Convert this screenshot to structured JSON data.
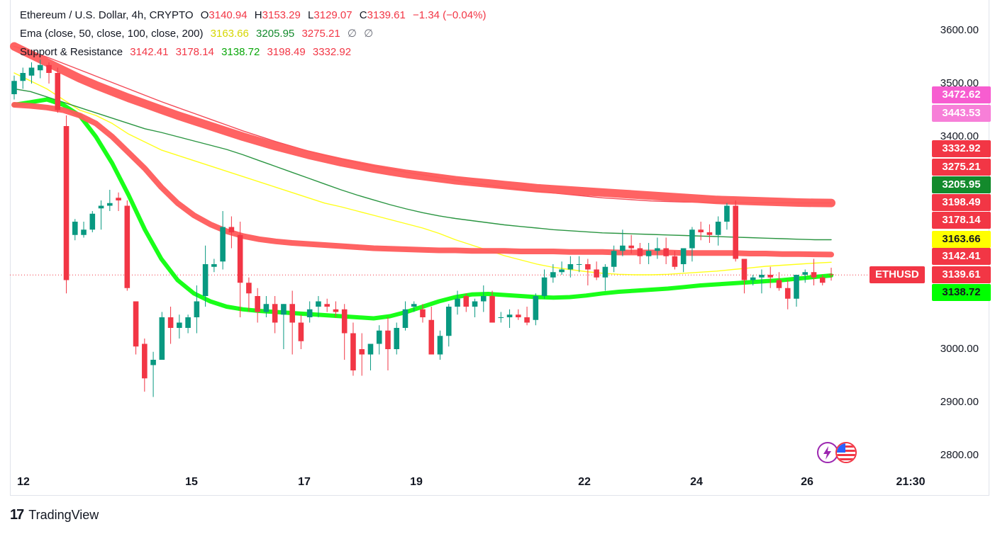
{
  "header": {
    "symbol_title": "Ethereum / U.S. Dollar, 4h, CRYPTO",
    "open_label": "O",
    "open": "3140.94",
    "high_label": "H",
    "high": "3153.29",
    "low_label": "L",
    "low": "3129.07",
    "close_label": "C",
    "close": "3139.61",
    "change": "−1.34 (−0.04%)"
  },
  "ema": {
    "name": "Ema (close, 50, close, 100, close, 200)",
    "v50": "3163.66",
    "v100": "3205.95",
    "v200": "3275.21",
    "extra1": "∅",
    "extra2": "∅"
  },
  "sr": {
    "name": "Support & Resistance",
    "v1": "3142.41",
    "v2": "3178.14",
    "v3": "3138.72",
    "v4": "3198.49",
    "v5": "3332.92"
  },
  "price_labels": [
    {
      "text": "3472.62",
      "bg": "#f75dd0",
      "fg": "#ffffff"
    },
    {
      "text": "3443.53",
      "bg": "#f77fd8",
      "fg": "#ffffff"
    },
    {
      "text": "3332.92",
      "bg": "#f23645",
      "fg": "#ffffff"
    },
    {
      "text": "3275.21",
      "bg": "#f23645",
      "fg": "#ffffff"
    },
    {
      "text": "3205.95",
      "bg": "#138a2c",
      "fg": "#ffffff"
    },
    {
      "text": "3198.49",
      "bg": "#f23645",
      "fg": "#ffffff"
    },
    {
      "text": "3178.14",
      "bg": "#f23645",
      "fg": "#ffffff"
    },
    {
      "text": "3163.66",
      "bg": "#ffff00",
      "fg": "#131722"
    },
    {
      "text": "3142.41",
      "bg": "#f23645",
      "fg": "#ffffff"
    },
    {
      "text": "3139.61",
      "bg": "#f23645",
      "fg": "#ffffff"
    },
    {
      "text": "3138.72",
      "bg": "#00ff00",
      "fg": "#131722"
    }
  ],
  "ticker_label": "ETHUSD",
  "brand": {
    "mark": "17",
    "name": "TradingView"
  },
  "colors": {
    "up": "#089981",
    "down": "#f23645",
    "ema50": "#ffff00",
    "ema100": "#138a2c",
    "ema200": "#f23645",
    "support": "#00ff00"
  },
  "chart_data": {
    "type": "candlestick",
    "title": "Ethereum / U.S. Dollar, 4h, CRYPTO",
    "ylim": [
      2760,
      3660
    ],
    "y_ticks": [
      "3600.00",
      "3500.00",
      "3400.00",
      "3000.00",
      "2900.00",
      "2800.00"
    ],
    "x_ticks": [
      "12",
      "15",
      "17",
      "19",
      "22",
      "24",
      "26",
      "21:30"
    ],
    "ohlc": [
      [
        3480,
        3515,
        3470,
        3505
      ],
      [
        3505,
        3530,
        3490,
        3520
      ],
      [
        3515,
        3540,
        3500,
        3530
      ],
      [
        3525,
        3545,
        3510,
        3535
      ],
      [
        3535,
        3540,
        3500,
        3520
      ],
      [
        3520,
        3530,
        3445,
        3450
      ],
      [
        3420,
        3440,
        3105,
        3130
      ],
      [
        3215,
        3245,
        3205,
        3240
      ],
      [
        3215,
        3240,
        3210,
        3225
      ],
      [
        3225,
        3260,
        3220,
        3255
      ],
      [
        3265,
        3280,
        3225,
        3270
      ],
      [
        3270,
        3300,
        3260,
        3275
      ],
      [
        3285,
        3295,
        3260,
        3280
      ],
      [
        3270,
        3280,
        3110,
        3115
      ],
      [
        3090,
        3090,
        2990,
        3005
      ],
      [
        3010,
        3020,
        2920,
        2945
      ],
      [
        2970,
        2995,
        2910,
        2980
      ],
      [
        2980,
        3070,
        2980,
        3060
      ],
      [
        3060,
        3080,
        3010,
        3040
      ],
      [
        3040,
        3065,
        3020,
        3050
      ],
      [
        3040,
        3065,
        3030,
        3060
      ],
      [
        3060,
        3120,
        3030,
        3090
      ],
      [
        3100,
        3195,
        3080,
        3160
      ],
      [
        3155,
        3170,
        3145,
        3160
      ],
      [
        3165,
        3260,
        3150,
        3230
      ],
      [
        3230,
        3250,
        3190,
        3220
      ],
      [
        3215,
        3240,
        3060,
        3125
      ],
      [
        3125,
        3135,
        3070,
        3105
      ],
      [
        3100,
        3115,
        3050,
        3070
      ],
      [
        3070,
        3100,
        3060,
        3085
      ],
      [
        3085,
        3100,
        3030,
        3050
      ],
      [
        3065,
        3085,
        3000,
        3085
      ],
      [
        3085,
        3110,
        2990,
        3050
      ],
      [
        3050,
        3065,
        3000,
        3015
      ],
      [
        3060,
        3090,
        3050,
        3075
      ],
      [
        3080,
        3100,
        3060,
        3090
      ],
      [
        3085,
        3095,
        3070,
        3080
      ],
      [
        3075,
        3090,
        3060,
        3070
      ],
      [
        3075,
        3085,
        2980,
        3030
      ],
      [
        3030,
        3050,
        2950,
        2960
      ],
      [
        3000,
        3030,
        2950,
        2990
      ],
      [
        2990,
        3010,
        2960,
        3010
      ],
      [
        3010,
        3045,
        2990,
        3035
      ],
      [
        3035,
        3060,
        2960,
        3000
      ],
      [
        3000,
        3050,
        2990,
        3040
      ],
      [
        3040,
        3090,
        3035,
        3075
      ],
      [
        3080,
        3090,
        3070,
        3085
      ],
      [
        3075,
        3085,
        3050,
        3060
      ],
      [
        3055,
        3080,
        2990,
        2990
      ],
      [
        2990,
        3035,
        2980,
        3025
      ],
      [
        3025,
        3085,
        3005,
        3080
      ],
      [
        3080,
        3110,
        3065,
        3095
      ],
      [
        3100,
        3105,
        3070,
        3080
      ],
      [
        3080,
        3095,
        3060,
        3090
      ],
      [
        3090,
        3120,
        3070,
        3100
      ],
      [
        3100,
        3110,
        3050,
        3050
      ],
      [
        3060,
        3070,
        3050,
        3060
      ],
      [
        3060,
        3075,
        3040,
        3065
      ],
      [
        3065,
        3075,
        3055,
        3060
      ],
      [
        3060,
        3080,
        3045,
        3050
      ],
      [
        3055,
        3105,
        3045,
        3100
      ],
      [
        3100,
        3150,
        3095,
        3135
      ],
      [
        3135,
        3160,
        3125,
        3145
      ],
      [
        3145,
        3165,
        3140,
        3150
      ],
      [
        3150,
        3175,
        3135,
        3160
      ],
      [
        3160,
        3175,
        3145,
        3160
      ],
      [
        3160,
        3170,
        3120,
        3150
      ],
      [
        3150,
        3165,
        3130,
        3135
      ],
      [
        3135,
        3160,
        3110,
        3155
      ],
      [
        3155,
        3195,
        3145,
        3185
      ],
      [
        3185,
        3225,
        3175,
        3195
      ],
      [
        3195,
        3215,
        3180,
        3190
      ],
      [
        3190,
        3200,
        3160,
        3175
      ],
      [
        3175,
        3200,
        3160,
        3185
      ],
      [
        3185,
        3210,
        3170,
        3190
      ],
      [
        3190,
        3210,
        3160,
        3175
      ],
      [
        3175,
        3185,
        3150,
        3155
      ],
      [
        3160,
        3190,
        3145,
        3190
      ],
      [
        3190,
        3230,
        3165,
        3225
      ],
      [
        3225,
        3240,
        3205,
        3220
      ],
      [
        3220,
        3235,
        3200,
        3215
      ],
      [
        3215,
        3250,
        3195,
        3240
      ],
      [
        3240,
        3275,
        3225,
        3270
      ],
      [
        3270,
        3280,
        3165,
        3170
      ],
      [
        3170,
        3170,
        3105,
        3130
      ],
      [
        3130,
        3140,
        3120,
        3135
      ],
      [
        3135,
        3150,
        3105,
        3140
      ],
      [
        3140,
        3155,
        3115,
        3135
      ],
      [
        3130,
        3145,
        3110,
        3115
      ],
      [
        3115,
        3130,
        3075,
        3095
      ],
      [
        3095,
        3140,
        3080,
        3140
      ],
      [
        3140,
        3150,
        3125,
        3145
      ],
      [
        3145,
        3170,
        3120,
        3135
      ],
      [
        3135,
        3140,
        3120,
        3125
      ],
      [
        3140.94,
        3153.29,
        3129.07,
        3139.61
      ]
    ],
    "series": [
      {
        "name": "Ema 50",
        "color": "#ffff00",
        "values": [
          3520,
          3505,
          3490,
          3470,
          3450,
          3440,
          3425,
          3405,
          3390,
          3375,
          3365,
          3355,
          3345,
          3335,
          3325,
          3315,
          3305,
          3295,
          3285,
          3275,
          3268,
          3260,
          3252,
          3244,
          3236,
          3228,
          3218,
          3206,
          3196,
          3186,
          3176,
          3168,
          3160,
          3154,
          3150,
          3146,
          3143,
          3141,
          3140,
          3140,
          3141,
          3143,
          3145,
          3147,
          3150,
          3153,
          3156,
          3158,
          3160,
          3162,
          3163.66
        ]
      },
      {
        "name": "Ema 100",
        "color": "#138a2c",
        "values": [
          3490,
          3485,
          3475,
          3465,
          3455,
          3445,
          3435,
          3425,
          3415,
          3408,
          3400,
          3392,
          3384,
          3376,
          3366,
          3355,
          3344,
          3333,
          3322,
          3311,
          3300,
          3290,
          3281,
          3272,
          3264,
          3257,
          3251,
          3246,
          3242,
          3238,
          3234,
          3231,
          3228,
          3225,
          3223,
          3221,
          3219,
          3218,
          3217,
          3216,
          3215,
          3214,
          3213,
          3212,
          3211,
          3210,
          3209,
          3208,
          3207,
          3206,
          3205.95
        ]
      },
      {
        "name": "Ema 200",
        "color": "#f23645",
        "values": [
          3570,
          3560,
          3550,
          3538,
          3526,
          3514,
          3502,
          3490,
          3478,
          3466,
          3455,
          3444,
          3433,
          3422,
          3411,
          3401,
          3391,
          3382,
          3373,
          3365,
          3358,
          3351,
          3345,
          3339,
          3333,
          3328,
          3323,
          3318,
          3313,
          3309,
          3305,
          3301,
          3297,
          3294,
          3291,
          3288,
          3285,
          3283,
          3281,
          3279,
          3278,
          3277,
          3276.5,
          3276,
          3275.8,
          3275.6,
          3275.5,
          3275.4,
          3275.3,
          3275.25,
          3275.21
        ]
      },
      {
        "name": "Support & Resistance",
        "color": "#00ff00",
        "values": [
          3460,
          3465,
          3470,
          3460,
          3440,
          3400,
          3350,
          3290,
          3225,
          3170,
          3130,
          3105,
          3090,
          3080,
          3075,
          3072,
          3070,
          3068,
          3066,
          3064,
          3062,
          3060,
          3058,
          3062,
          3070,
          3080,
          3090,
          3098,
          3103,
          3104,
          3102,
          3100,
          3098,
          3097,
          3098,
          3101,
          3105,
          3108,
          3110,
          3112,
          3114,
          3117,
          3120,
          3122,
          3124,
          3126,
          3128,
          3130,
          3133,
          3136,
          3138.72
        ]
      }
    ]
  }
}
